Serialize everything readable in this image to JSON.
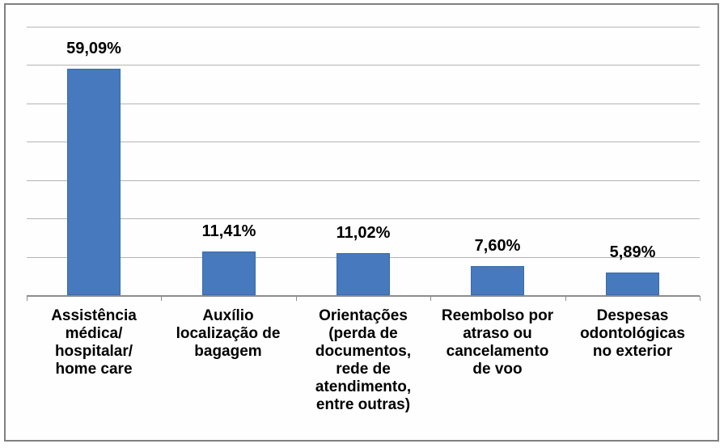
{
  "chart": {
    "frame_border_color": "#808080",
    "background_color": "#ffffff"
  },
  "chart_data": {
    "type": "bar",
    "title": "",
    "xlabel": "",
    "ylabel": "",
    "categories": [
      "Assistência médica/ hospitalar/ home care",
      "Auxílio localização de bagagem",
      "Orientações (perda de documentos, rede de atendimento, entre outras)",
      "Reembolso por atraso ou cancelamento de voo",
      "Despesas odontológicas no exterior"
    ],
    "category_lines": [
      [
        "Assistência",
        "médica/",
        "hospitalar/",
        "home care"
      ],
      [
        "Auxílio",
        "localização de",
        "bagagem"
      ],
      [
        "Orientações",
        "(perda de",
        "documentos,",
        "rede de",
        "atendimento,",
        "entre outras)"
      ],
      [
        "Reembolso por",
        "atraso ou",
        "cancelamento",
        "de voo"
      ],
      [
        "Despesas",
        "odontológicas",
        "no exterior"
      ]
    ],
    "values": [
      59.09,
      11.41,
      11.02,
      7.6,
      5.89
    ],
    "value_labels": [
      "59,09%",
      "11,41%",
      "11,02%",
      "7,60%",
      "5,89%"
    ],
    "ylim": [
      0,
      70
    ],
    "grid_step": 10,
    "grid": true,
    "y_tick_labels_visible": false,
    "legend": "none",
    "bar_color": "#4679bd",
    "bar_border_color": "#3a6ba8",
    "gridline_color": "#b4b4b4",
    "axis_color": "#8c8c8c",
    "label_color": "#000000"
  }
}
